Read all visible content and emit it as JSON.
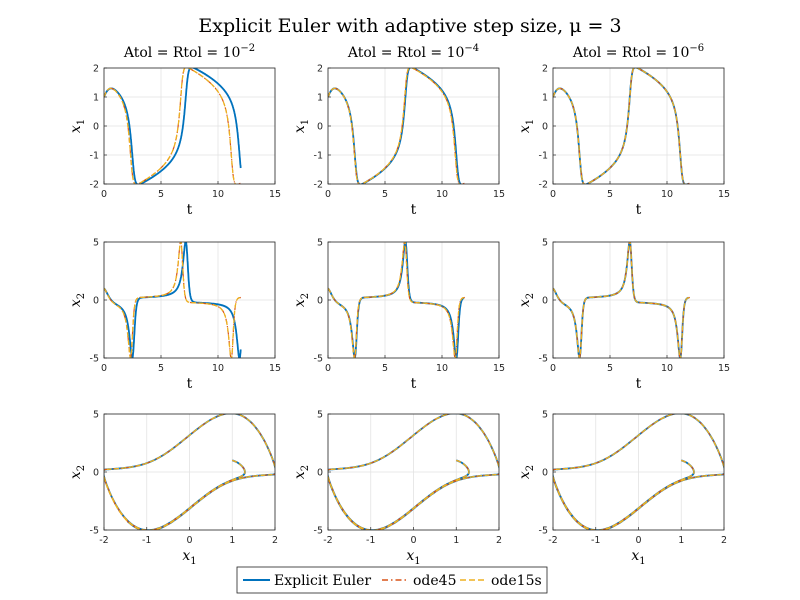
{
  "figure": {
    "title": "Explicit Euler with adaptive step size, μ = 3",
    "columns": [
      {
        "title": "Atol = Rtol = 10",
        "exp": "−2"
      },
      {
        "title": "Atol = Rtol = 10",
        "exp": "−4"
      },
      {
        "title": "Atol = Rtol = 10",
        "exp": "−6"
      }
    ],
    "legend": [
      {
        "label": "Explicit Euler",
        "color": "#0072bd",
        "style": "solid"
      },
      {
        "label": "ode45",
        "color": "#d95319",
        "style": "dashdot"
      },
      {
        "label": "ode15s",
        "color": "#edb120",
        "style": "dashed"
      }
    ]
  },
  "chart_data": [
    {
      "type": "line",
      "row": 1,
      "xlabel": "t",
      "ylabel": "x1",
      "xlim": [
        0,
        15
      ],
      "ylim": [
        -2,
        2
      ],
      "xticks": [
        0,
        5,
        10,
        15
      ],
      "yticks": [
        -2,
        -1,
        0,
        1,
        2
      ],
      "grid": true
    },
    {
      "type": "line",
      "row": 2,
      "xlabel": "t",
      "ylabel": "x2",
      "xlim": [
        0,
        15
      ],
      "ylim": [
        -5,
        5
      ],
      "xticks": [
        0,
        5,
        10,
        15
      ],
      "yticks": [
        -5,
        0,
        5
      ],
      "grid": true
    },
    {
      "type": "line",
      "row": 3,
      "xlabel": "x1",
      "ylabel": "x2",
      "xlim": [
        -2,
        2
      ],
      "ylim": [
        -5,
        5
      ],
      "xticks": [
        -2,
        -1,
        0,
        1,
        2
      ],
      "yticks": [
        -5,
        0,
        5
      ],
      "grid": true
    }
  ]
}
